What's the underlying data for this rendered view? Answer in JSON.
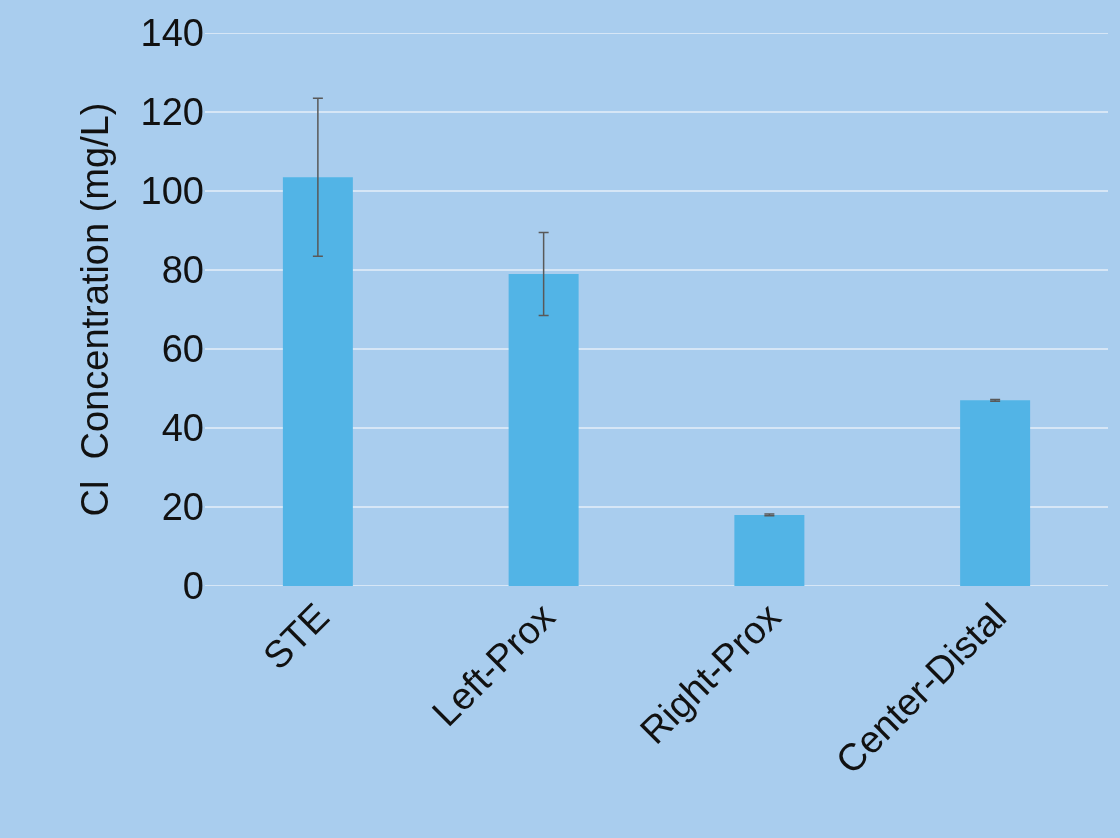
{
  "chart_data": {
    "type": "bar",
    "ylabel": "Cl  Concentration (mg/L)",
    "categories": [
      "STE",
      "Left-Prox",
      "Right-Prox",
      "Center-Distal"
    ],
    "values": [
      103.5,
      79,
      18,
      47
    ],
    "errors": [
      20,
      10.5,
      0.2,
      0.2
    ],
    "color": "#52b4e6",
    "ylim": [
      0,
      140
    ],
    "yticks": [
      0,
      20,
      40,
      60,
      80,
      100,
      120,
      140
    ],
    "grid": "y"
  }
}
